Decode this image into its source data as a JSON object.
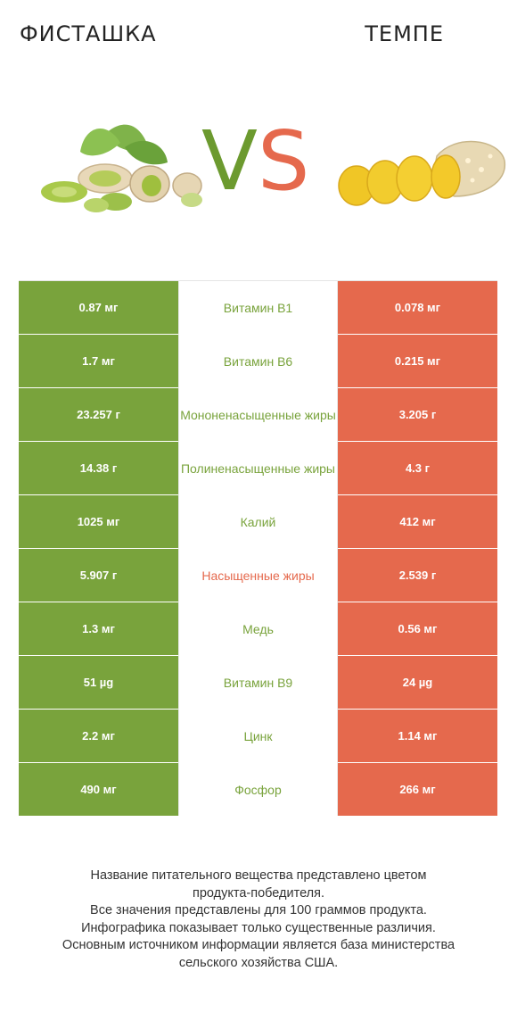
{
  "header": {
    "left_title": "ФИСТАШКА",
    "right_title": "ТЕМПЕ",
    "vs_v": "V",
    "vs_s": "S"
  },
  "colors": {
    "left_winner": "#79a33c",
    "right_winner": "#e5694d"
  },
  "rows": [
    {
      "left": "0.87 мг",
      "nutrient": "Витамин B1",
      "right": "0.078 мг",
      "winner": "left"
    },
    {
      "left": "1.7 мг",
      "nutrient": "Витамин B6",
      "right": "0.215 мг",
      "winner": "left"
    },
    {
      "left": "23.257 г",
      "nutrient": "Мононенасыщенные жиры",
      "right": "3.205 г",
      "winner": "left"
    },
    {
      "left": "14.38 г",
      "nutrient": "Полиненасыщенные жиры",
      "right": "4.3 г",
      "winner": "left"
    },
    {
      "left": "1025 мг",
      "nutrient": "Калий",
      "right": "412 мг",
      "winner": "left"
    },
    {
      "left": "5.907 г",
      "nutrient": "Насыщенные жиры",
      "right": "2.539 г",
      "winner": "right"
    },
    {
      "left": "1.3 мг",
      "nutrient": "Медь",
      "right": "0.56 мг",
      "winner": "left"
    },
    {
      "left": "51 µg",
      "nutrient": "Витамин B9",
      "right": "24 µg",
      "winner": "left"
    },
    {
      "left": "2.2 мг",
      "nutrient": "Цинк",
      "right": "1.14 мг",
      "winner": "left"
    },
    {
      "left": "490 мг",
      "nutrient": "Фосфор",
      "right": "266 мг",
      "winner": "left"
    }
  ],
  "footer": {
    "line1": "Название питательного вещества представлено цветом",
    "line2": "продукта-победителя.",
    "line3": "Все значения представлены для 100 граммов продукта.",
    "line4": "Инфографика показывает только существенные различия.",
    "line5": "Основным источником информации является база министерства",
    "line6": "сельского хозяйства США."
  }
}
